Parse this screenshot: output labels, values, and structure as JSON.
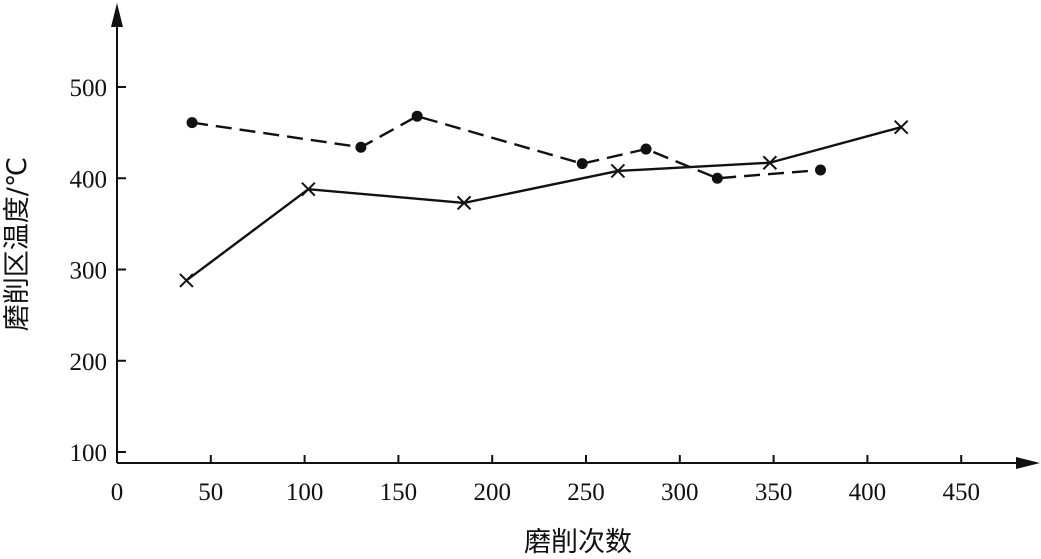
{
  "chart_data": {
    "type": "line",
    "title": "",
    "xlabel": "磨削次数",
    "ylabel": "磨削区温度/℃",
    "xlim": [
      0,
      450
    ],
    "ylim": [
      100,
      500
    ],
    "xticks": [
      0,
      50,
      100,
      150,
      200,
      250,
      300,
      350,
      400,
      450
    ],
    "yticks": [
      100,
      200,
      300,
      400,
      500
    ],
    "grid": false,
    "legend": "none",
    "series": [
      {
        "style": "dashed",
        "marker": "dot",
        "color": "#111111",
        "points": [
          {
            "x": 40,
            "y": 461
          },
          {
            "x": 130,
            "y": 434
          },
          {
            "x": 160,
            "y": 468
          },
          {
            "x": 248,
            "y": 416
          },
          {
            "x": 282,
            "y": 432
          },
          {
            "x": 320,
            "y": 400
          },
          {
            "x": 375,
            "y": 409
          }
        ]
      },
      {
        "style": "solid",
        "marker": "x",
        "color": "#111111",
        "points": [
          {
            "x": 37,
            "y": 288
          },
          {
            "x": 102,
            "y": 388
          },
          {
            "x": 185,
            "y": 373
          },
          {
            "x": 267,
            "y": 408
          },
          {
            "x": 348,
            "y": 417
          },
          {
            "x": 418,
            "y": 456
          }
        ]
      }
    ]
  }
}
